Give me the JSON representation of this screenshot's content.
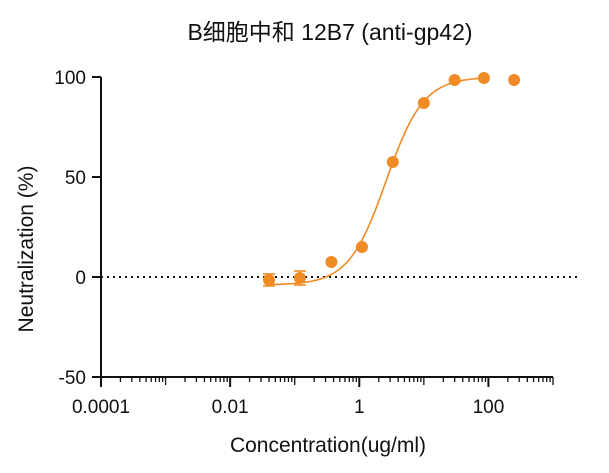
{
  "chart_data": {
    "type": "scatter",
    "title": "B细胞中和 12B7 (anti-gp42)",
    "xlabel": "Concentration(ug/ml)",
    "ylabel": "Neutralization (%)",
    "x_scale": "log10",
    "xlim": [
      0.0001,
      1000
    ],
    "ylim": [
      -50,
      100
    ],
    "x_ticks": [
      0.0001,
      0.01,
      1,
      100
    ],
    "x_tick_labels": [
      "0.0001",
      "0.01",
      "1",
      "100"
    ],
    "y_ticks": [
      -50,
      0,
      50,
      100
    ],
    "y_tick_labels": [
      "-50",
      "0",
      "50",
      "100"
    ],
    "reference_line": {
      "y": 0,
      "style": "dotted"
    },
    "points": [
      {
        "x": 0.04,
        "y": -1.5,
        "err": 3
      },
      {
        "x": 0.12,
        "y": -0.5,
        "err": 3.5
      },
      {
        "x": 0.37,
        "y": 7.5
      },
      {
        "x": 1.1,
        "y": 15
      },
      {
        "x": 3.3,
        "y": 57.5
      },
      {
        "x": 10,
        "y": 87
      },
      {
        "x": 30,
        "y": 98.5
      },
      {
        "x": 85,
        "y": 99.5
      },
      {
        "x": 250,
        "y": 98.5
      }
    ],
    "fit_curve": {
      "model": "four-parameter logistic",
      "bottom": -4,
      "top": 100,
      "ec50": 2.6,
      "hill": 1.5,
      "x_range": [
        0.04,
        85
      ]
    },
    "color": "#F08A24",
    "grid": false,
    "legend": "none"
  }
}
